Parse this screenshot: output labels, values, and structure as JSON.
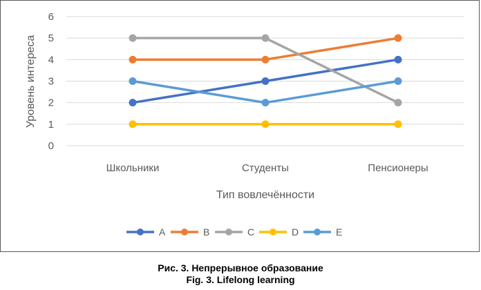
{
  "chart_data": {
    "type": "line",
    "title": "",
    "xlabel": "Тип вовлечённости",
    "ylabel": "Уровень интереса",
    "categories": [
      "Школьники",
      "Студенты",
      "Пенсионеры"
    ],
    "ylim": [
      0,
      6
    ],
    "yticks": [
      0,
      1,
      2,
      3,
      4,
      5,
      6
    ],
    "grid": true,
    "legend_position": "bottom",
    "series": [
      {
        "name": "A",
        "values": [
          2,
          3,
          4
        ],
        "color": "#4472C4"
      },
      {
        "name": "B",
        "values": [
          4,
          4,
          5
        ],
        "color": "#ED7D31"
      },
      {
        "name": "C",
        "values": [
          5,
          5,
          2
        ],
        "color": "#A5A5A5"
      },
      {
        "name": "D",
        "values": [
          1,
          1,
          1
        ],
        "color": "#FFC000"
      },
      {
        "name": "E",
        "values": [
          3,
          2,
          3
        ],
        "color": "#5B9BD5"
      }
    ]
  },
  "caption": {
    "ru": "Рис. 3. Непрерывное образование",
    "en": "Fig. 3. Lifelong learning"
  }
}
